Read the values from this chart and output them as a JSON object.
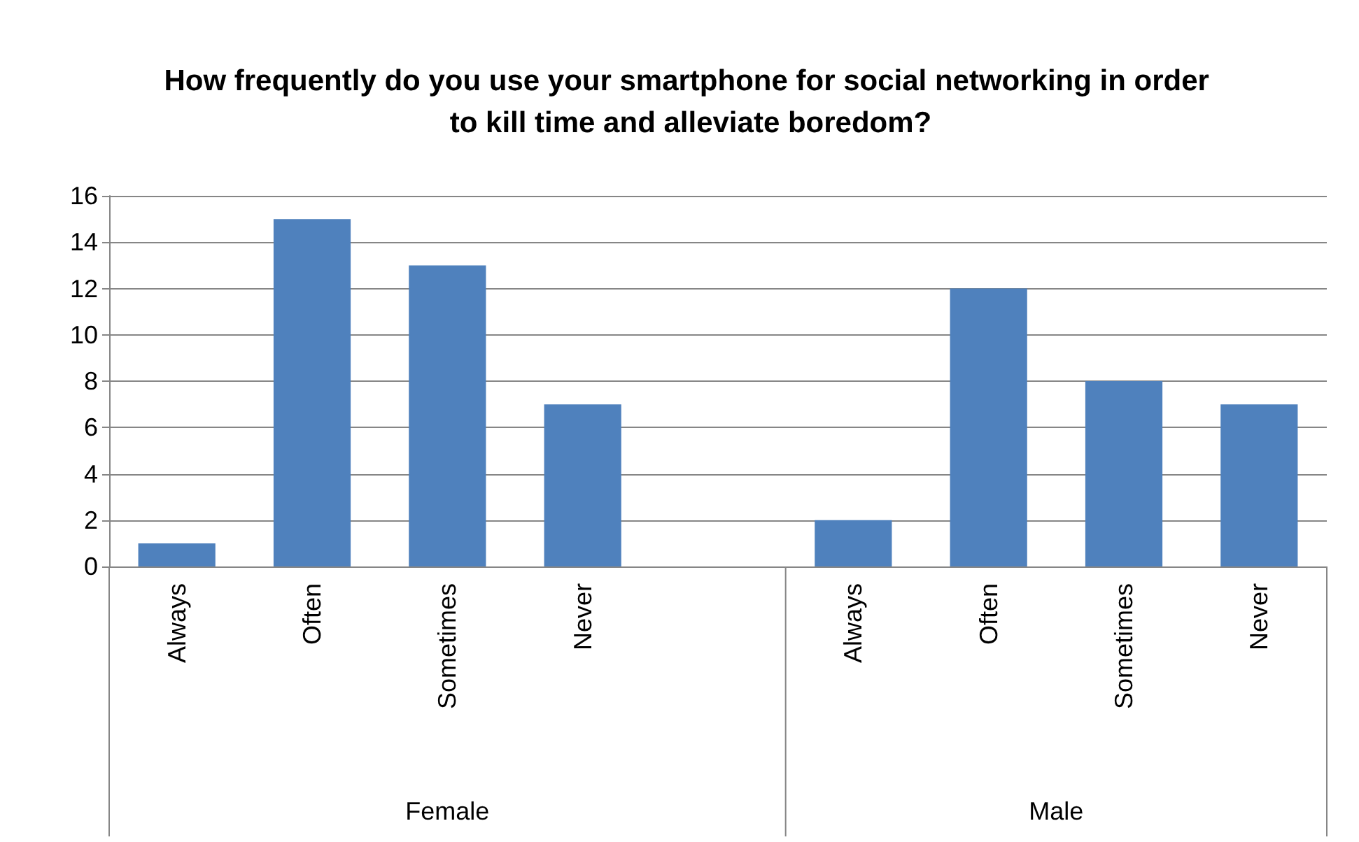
{
  "chart_data": {
    "type": "bar",
    "title": "How frequently do you use your smartphone for social networking in order to kill time and alleviate boredom?",
    "categories": [
      "Always",
      "Often",
      "Sometimes",
      "Never",
      null,
      "Always",
      "Often",
      "Sometimes",
      "Never"
    ],
    "values": [
      1,
      15,
      13,
      7,
      null,
      2,
      12,
      8,
      7
    ],
    "color": "#4f81bd",
    "ylim": [
      0,
      16
    ],
    "yticks": [
      0,
      2,
      4,
      6,
      8,
      10,
      12,
      14,
      16
    ],
    "grid": "y",
    "annotations": [
      "Female",
      "Male"
    ]
  }
}
